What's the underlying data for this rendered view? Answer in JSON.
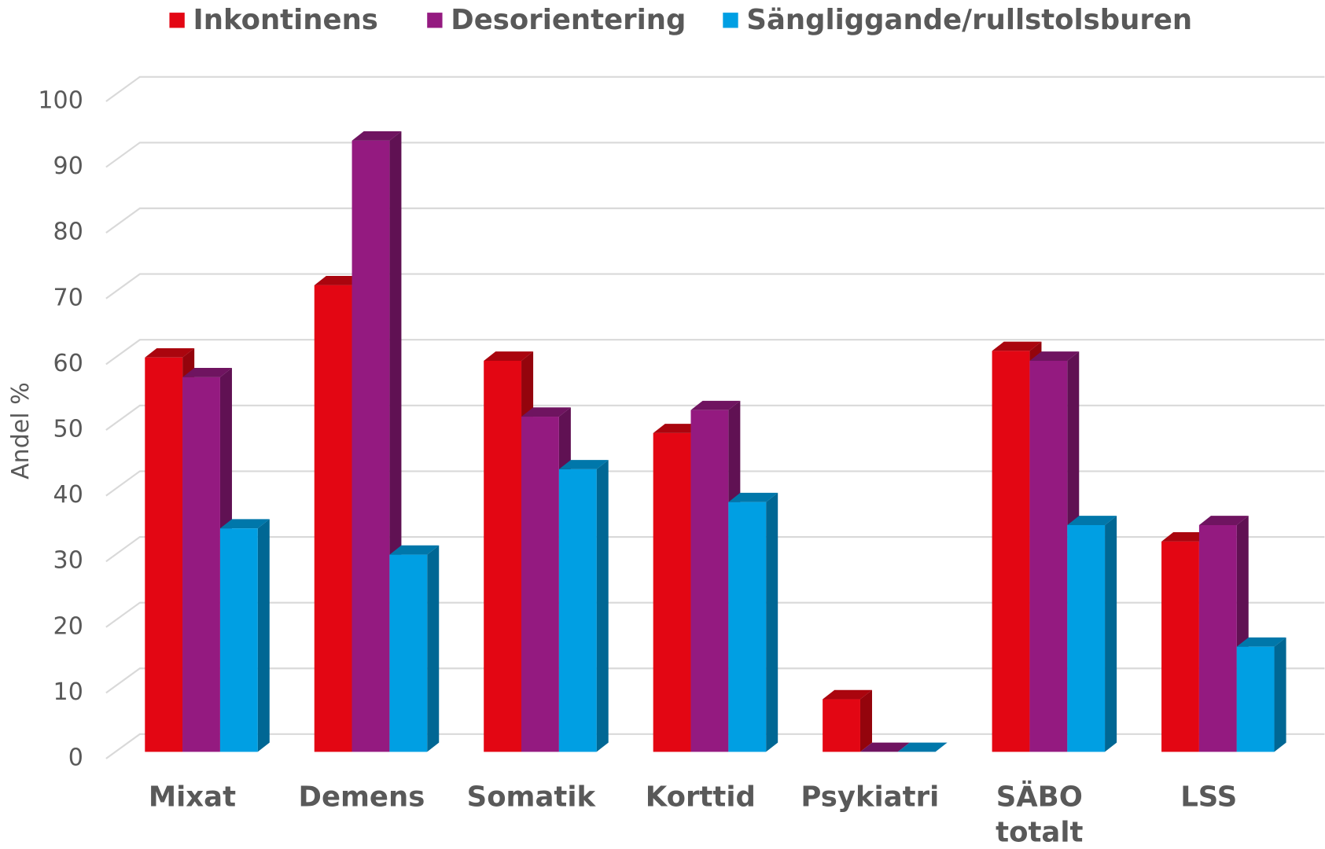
{
  "chart_data": {
    "type": "bar3d",
    "y_label": "Andel %",
    "categories": [
      "Mixat",
      "Demens",
      "Somatik",
      "Korttid",
      "Psykiatri",
      "SÄBO totalt",
      "LSS"
    ],
    "series": [
      {
        "name": "Inkontinens",
        "color": "#e30613",
        "values": [
          60,
          71,
          59.5,
          48.5,
          8,
          61,
          32
        ]
      },
      {
        "name": "Desorientering",
        "color": "#941a80",
        "values": [
          57,
          93,
          51,
          52,
          0,
          59.5,
          34.5
        ]
      },
      {
        "name": "Sängliggande/rullstolsburen",
        "color": "#009fe3",
        "values": [
          34,
          30,
          43,
          38,
          0,
          34.5,
          16
        ]
      }
    ],
    "ylim": [
      0,
      100
    ],
    "yticks": [
      0,
      10,
      20,
      30,
      40,
      50,
      60,
      70,
      80,
      90,
      100
    ],
    "grid": true,
    "legend": "top"
  }
}
